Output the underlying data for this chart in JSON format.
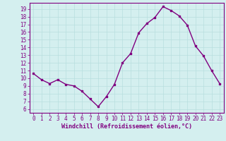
{
  "x": [
    0,
    1,
    2,
    3,
    4,
    5,
    6,
    7,
    8,
    9,
    10,
    11,
    12,
    13,
    14,
    15,
    16,
    17,
    18,
    19,
    20,
    21,
    22,
    23
  ],
  "y": [
    10.6,
    9.8,
    9.3,
    9.8,
    9.2,
    9.0,
    8.3,
    7.3,
    6.3,
    7.6,
    9.2,
    12.0,
    13.2,
    15.9,
    17.1,
    17.9,
    19.3,
    18.8,
    18.1,
    16.9,
    14.2,
    12.9,
    11.0,
    9.3
  ],
  "line_color": "#800080",
  "marker": "s",
  "markersize": 2,
  "linewidth": 1.0,
  "bg_color": "#d4efef",
  "grid_color": "#b8dede",
  "xlabel": "Windchill (Refroidissement éolien,°C)",
  "xlabel_color": "#800080",
  "xlabel_fontsize": 6.0,
  "ytick_labels": [
    "6",
    "7",
    "8",
    "9",
    "10",
    "11",
    "12",
    "13",
    "14",
    "15",
    "16",
    "17",
    "18",
    "19"
  ],
  "ylim": [
    5.5,
    19.8
  ],
  "xlim": [
    -0.5,
    23.5
  ],
  "xtick_labels": [
    "0",
    "1",
    "2",
    "3",
    "4",
    "5",
    "6",
    "7",
    "8",
    "9",
    "10",
    "11",
    "12",
    "13",
    "14",
    "15",
    "16",
    "17",
    "18",
    "19",
    "20",
    "21",
    "22",
    "23"
  ],
  "tick_color": "#800080",
  "tick_fontsize": 5.5,
  "spine_color": "#800080"
}
